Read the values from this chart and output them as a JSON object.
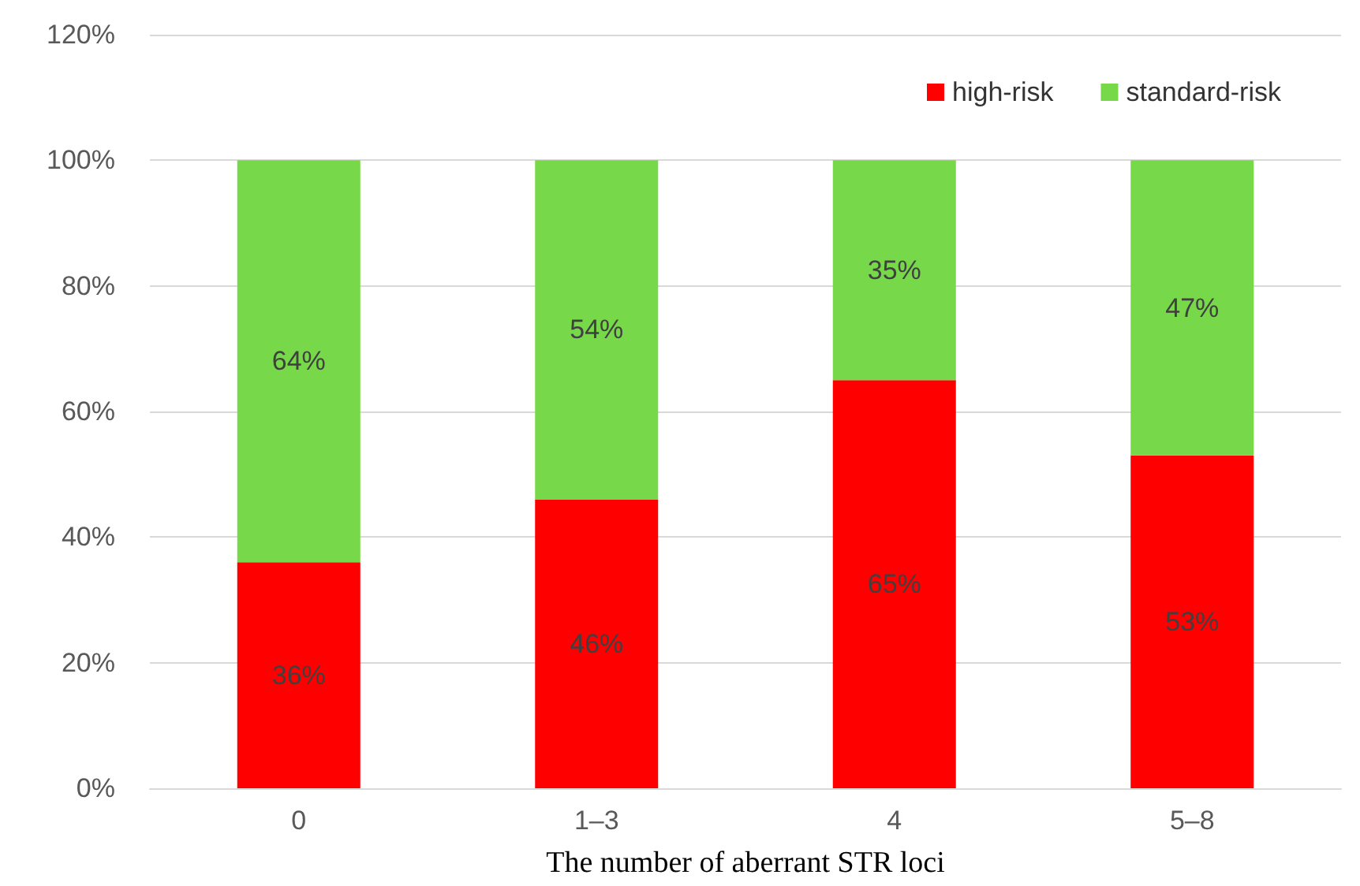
{
  "chart_data": {
    "type": "bar",
    "stacked": true,
    "xlabel": "The number of aberrant STR loci",
    "categories": [
      "0",
      "1–3",
      "4",
      "5–8"
    ],
    "series": [
      {
        "name": "high-risk",
        "color": "#ff0000",
        "values": [
          36,
          46,
          65,
          53
        ],
        "value_labels": [
          "36%",
          "46%",
          "65%",
          "53%"
        ]
      },
      {
        "name": "standard-risk",
        "color": "#77d94a",
        "values": [
          64,
          54,
          35,
          47
        ],
        "value_labels": [
          "64%",
          "54%",
          "35%",
          "47%"
        ]
      }
    ],
    "ylim": [
      0,
      120
    ],
    "yticks": [
      {
        "value": 0,
        "label": "0%"
      },
      {
        "value": 20,
        "label": "20%"
      },
      {
        "value": 40,
        "label": "40%"
      },
      {
        "value": 60,
        "label": "60%"
      },
      {
        "value": 80,
        "label": "80%"
      },
      {
        "value": 100,
        "label": "100%"
      },
      {
        "value": 120,
        "label": "120%"
      }
    ],
    "grid": "y",
    "legend": "top right"
  }
}
